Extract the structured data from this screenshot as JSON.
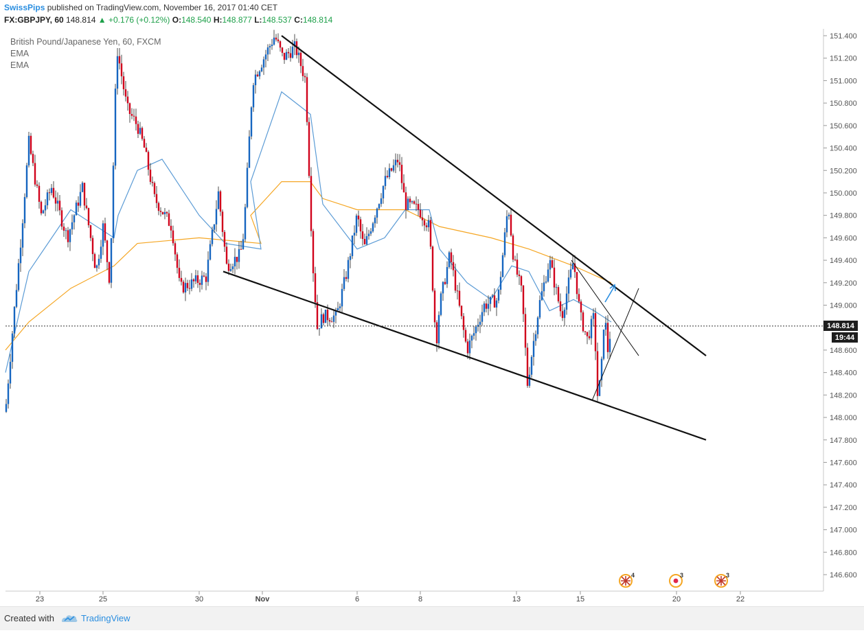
{
  "header": {
    "author": "SwissPips",
    "published_text": "published on TradingView.com, November 16, 2017 01:40 CET",
    "symbol": "FX:GBPJPY, 60",
    "last": "148.814",
    "change": "▲ +0.176 (+0.12%)",
    "o_label": "O:",
    "o_value": "148.540",
    "h_label": "H:",
    "h_value": "148.877",
    "l_label": "L:",
    "l_value": "148.537",
    "c_label": "C:",
    "c_value": "148.814"
  },
  "legend": {
    "title": "British Pound/Japanese Yen, 60, FXCM",
    "ind1": "EMA",
    "ind2": "EMA"
  },
  "price_box": {
    "price": "148.814",
    "countdown": "19:44"
  },
  "events": [
    {
      "label": "4",
      "icon": "uk-flag-icon"
    },
    {
      "label": "3",
      "icon": "japan-flag-icon"
    },
    {
      "label": "3",
      "icon": "uk-flag-icon"
    }
  ],
  "footer": {
    "created": "Created with",
    "brand": "TradingView"
  },
  "colors": {
    "up": "#1565c0",
    "down": "#d0021b",
    "ema_fast": "#5b9bd5",
    "ema_slow": "#f5a623",
    "accent": "#2a8ee0"
  },
  "chart_data": {
    "type": "candlestick",
    "ylim": [
      146.5,
      151.5
    ],
    "y_ticks": [
      "151.400",
      "151.200",
      "151.000",
      "150.800",
      "150.600",
      "150.400",
      "150.200",
      "150.000",
      "149.800",
      "149.600",
      "149.400",
      "149.200",
      "149.000",
      "148.800",
      "148.600",
      "148.400",
      "148.200",
      "148.000",
      "147.800",
      "147.600",
      "147.400",
      "147.200",
      "147.000",
      "146.800",
      "146.600"
    ],
    "x_ticks": [
      "23",
      "25",
      "30",
      "Nov",
      "6",
      "8",
      "13",
      "15",
      "20",
      "22"
    ],
    "last_price": 148.814,
    "grid": false,
    "price_path": [
      {
        "x": "Oct 20",
        "y": 148.05
      },
      {
        "x": "Oct 20",
        "y": 148.9
      },
      {
        "x": "Oct 21",
        "y": 149.7
      },
      {
        "x": "Oct 22",
        "y": 150.45
      },
      {
        "x": "Oct 23",
        "y": 149.8
      },
      {
        "x": "Oct 24",
        "y": 150.05
      },
      {
        "x": "Oct 24",
        "y": 149.6
      },
      {
        "x": "Oct 25",
        "y": 150.05
      },
      {
        "x": "Oct 26",
        "y": 149.3
      },
      {
        "x": "Oct 26",
        "y": 149.7
      },
      {
        "x": "Oct 27",
        "y": 149.2
      },
      {
        "x": "Oct 27",
        "y": 151.3
      },
      {
        "x": "Oct 28",
        "y": 150.75
      },
      {
        "x": "Oct 28",
        "y": 150.6
      },
      {
        "x": "Oct 29",
        "y": 150.4
      },
      {
        "x": "Oct 29",
        "y": 149.95
      },
      {
        "x": "Oct 30",
        "y": 149.7
      },
      {
        "x": "Oct 30",
        "y": 149.15
      },
      {
        "x": "Oct 31",
        "y": 149.25
      },
      {
        "x": "Oct 31",
        "y": 150.0
      },
      {
        "x": "Nov 1",
        "y": 149.35
      },
      {
        "x": "Nov 1",
        "y": 149.45
      },
      {
        "x": "Nov 2",
        "y": 149.65
      },
      {
        "x": "Nov 2",
        "y": 151.0
      },
      {
        "x": "Nov 3",
        "y": 151.4
      },
      {
        "x": "Nov 3",
        "y": 151.2
      },
      {
        "x": "Nov 4",
        "y": 151.3
      },
      {
        "x": "Nov 4",
        "y": 151.0
      },
      {
        "x": "Nov 4",
        "y": 149.4
      },
      {
        "x": "Nov 5",
        "y": 148.8
      },
      {
        "x": "Nov 5",
        "y": 148.9
      },
      {
        "x": "Nov 6",
        "y": 148.9
      },
      {
        "x": "Nov 6",
        "y": 149.3
      },
      {
        "x": "Nov 7",
        "y": 149.8
      },
      {
        "x": "Nov 7",
        "y": 149.5
      },
      {
        "x": "Nov 8",
        "y": 150.1
      },
      {
        "x": "Nov 8",
        "y": 150.3
      },
      {
        "x": "Nov 8",
        "y": 149.9
      },
      {
        "x": "Nov 9",
        "y": 149.85
      },
      {
        "x": "Nov 9",
        "y": 149.7
      },
      {
        "x": "Nov 10",
        "y": 148.65
      },
      {
        "x": "Nov 10",
        "y": 149.0
      },
      {
        "x": "Nov 11",
        "y": 149.45
      },
      {
        "x": "Nov 11",
        "y": 148.6
      },
      {
        "x": "Nov 12",
        "y": 148.75
      },
      {
        "x": "Nov 12",
        "y": 149.0
      },
      {
        "x": "Nov 13",
        "y": 149.05
      },
      {
        "x": "Nov 13",
        "y": 149.9
      },
      {
        "x": "Nov 14",
        "y": 149.4
      },
      {
        "x": "Nov 14",
        "y": 149.1
      },
      {
        "x": "Nov 14",
        "y": 148.3
      },
      {
        "x": "Nov 15",
        "y": 148.6
      },
      {
        "x": "Nov 15",
        "y": 149.0
      },
      {
        "x": "Nov 15",
        "y": 149.4
      },
      {
        "x": "Nov 16",
        "y": 148.9
      },
      {
        "x": "Nov 16",
        "y": 149.4
      },
      {
        "x": "Nov 16",
        "y": 148.9
      },
      {
        "x": "Nov 17",
        "y": 148.7
      },
      {
        "x": "Nov 17",
        "y": 148.9
      },
      {
        "x": "Nov 17",
        "y": 148.2
      },
      {
        "x": "Nov 18",
        "y": 148.35
      },
      {
        "x": "Nov 18",
        "y": 148.95
      },
      {
        "x": "Nov 18",
        "y": 148.6
      },
      {
        "x": "Nov 18",
        "y": 148.814
      }
    ],
    "ema_fast": [
      {
        "x": "Oct 20",
        "y": 148.4
      },
      {
        "x": "Oct 22",
        "y": 149.3
      },
      {
        "x": "Oct 24",
        "y": 149.85
      },
      {
        "x": "Oct 26",
        "y": 149.6
      },
      {
        "x": "Oct 27",
        "y": 149.8
      },
      {
        "x": "Oct 28",
        "y": 150.2
      },
      {
        "x": "Oct 29",
        "y": 150.3
      },
      {
        "x": "Oct 30",
        "y": 149.8
      },
      {
        "x": "Oct 31",
        "y": 149.55
      },
      {
        "x": "Nov 1",
        "y": 149.5
      },
      {
        "x": "Nov 2",
        "y": 150.1
      },
      {
        "x": "Nov 3",
        "y": 150.9
      },
      {
        "x": "Nov 4",
        "y": 150.7
      },
      {
        "x": "Nov 5",
        "y": 149.9
      },
      {
        "x": "Nov 6",
        "y": 149.5
      },
      {
        "x": "Nov 7",
        "y": 149.6
      },
      {
        "x": "Nov 8",
        "y": 149.85
      },
      {
        "x": "Nov 9",
        "y": 149.85
      },
      {
        "x": "Nov 10",
        "y": 149.5
      },
      {
        "x": "Nov 11",
        "y": 149.2
      },
      {
        "x": "Nov 12",
        "y": 149.05
      },
      {
        "x": "Nov 13",
        "y": 149.35
      },
      {
        "x": "Nov 14",
        "y": 149.3
      },
      {
        "x": "Nov 15",
        "y": 148.95
      },
      {
        "x": "Nov 16",
        "y": 149.05
      },
      {
        "x": "Nov 17",
        "y": 148.95
      },
      {
        "x": "Nov 18",
        "y": 148.85
      }
    ],
    "ema_slow": [
      {
        "x": "Oct 20",
        "y": 148.6
      },
      {
        "x": "Oct 22",
        "y": 148.85
      },
      {
        "x": "Oct 24",
        "y": 149.15
      },
      {
        "x": "Oct 26",
        "y": 149.35
      },
      {
        "x": "Oct 28",
        "y": 149.55
      },
      {
        "x": "Oct 30",
        "y": 149.6
      },
      {
        "x": "Nov 1",
        "y": 149.55
      },
      {
        "x": "Nov 2",
        "y": 149.8
      },
      {
        "x": "Nov 3",
        "y": 150.1
      },
      {
        "x": "Nov 4",
        "y": 150.1
      },
      {
        "x": "Nov 5",
        "y": 149.95
      },
      {
        "x": "Nov 6",
        "y": 149.85
      },
      {
        "x": "Nov 8",
        "y": 149.85
      },
      {
        "x": "Nov 10",
        "y": 149.7
      },
      {
        "x": "Nov 12",
        "y": 149.6
      },
      {
        "x": "Nov 14",
        "y": 149.5
      },
      {
        "x": "Nov 16",
        "y": 149.35
      },
      {
        "x": "Nov 18",
        "y": 149.2
      }
    ],
    "trendlines": [
      {
        "name": "upper-wedge",
        "from": {
          "x": "Nov 3",
          "y": 151.4
        },
        "to": {
          "x": "Nov 22",
          "y": 148.55
        }
      },
      {
        "name": "lower-wedge",
        "from": {
          "x": "Oct 31",
          "y": 149.3
        },
        "to": {
          "x": "Nov 22",
          "y": 147.8
        }
      },
      {
        "name": "channel-down",
        "from": {
          "x": "Nov 15",
          "y": 149.4
        },
        "to": {
          "x": "Nov 19",
          "y": 148.55
        }
      },
      {
        "name": "channel-up",
        "from": {
          "x": "Nov 17",
          "y": 148.15
        },
        "to": {
          "x": "Nov 19",
          "y": 149.15
        }
      }
    ]
  }
}
